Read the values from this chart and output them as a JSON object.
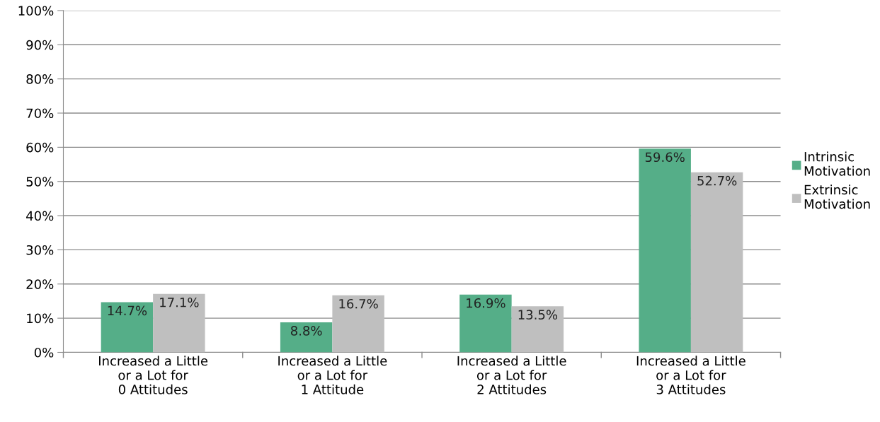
{
  "chart_data": {
    "type": "bar",
    "categories": [
      "Increased a Little\nor a Lot for\n0 Attitudes",
      "Increased a Little\nor a Lot for\n1 Attitude",
      "Increased a Little\nor a Lot for\n2 Attitudes",
      "Increased a Little\nor a Lot for\n3 Attitudes"
    ],
    "series": [
      {
        "name": "Intrinsic\nMotivation",
        "color": "#55ae88",
        "values": [
          14.7,
          8.8,
          16.9,
          59.6
        ],
        "value_labels": [
          "14.7%",
          "8.8%",
          "16.9%",
          "59.6%"
        ]
      },
      {
        "name": "Extrinsic\nMotivation",
        "color": "#bfbfbf",
        "values": [
          17.1,
          16.7,
          13.5,
          52.7
        ],
        "value_labels": [
          "17.1%",
          "16.7%",
          "13.5%",
          "52.7%"
        ]
      }
    ],
    "ylim": [
      0,
      100
    ],
    "yticks": [
      {
        "value": 0,
        "label": "0%"
      },
      {
        "value": 10,
        "label": "10%"
      },
      {
        "value": 20,
        "label": "20%"
      },
      {
        "value": 30,
        "label": "30%"
      },
      {
        "value": 40,
        "label": "40%"
      },
      {
        "value": 50,
        "label": "50%"
      },
      {
        "value": 60,
        "label": "60%"
      },
      {
        "value": 70,
        "label": "70%"
      },
      {
        "value": 80,
        "label": "80%"
      },
      {
        "value": 90,
        "label": "90%"
      },
      {
        "value": 100,
        "label": "100%"
      }
    ],
    "grid": "y",
    "legend": "right"
  }
}
